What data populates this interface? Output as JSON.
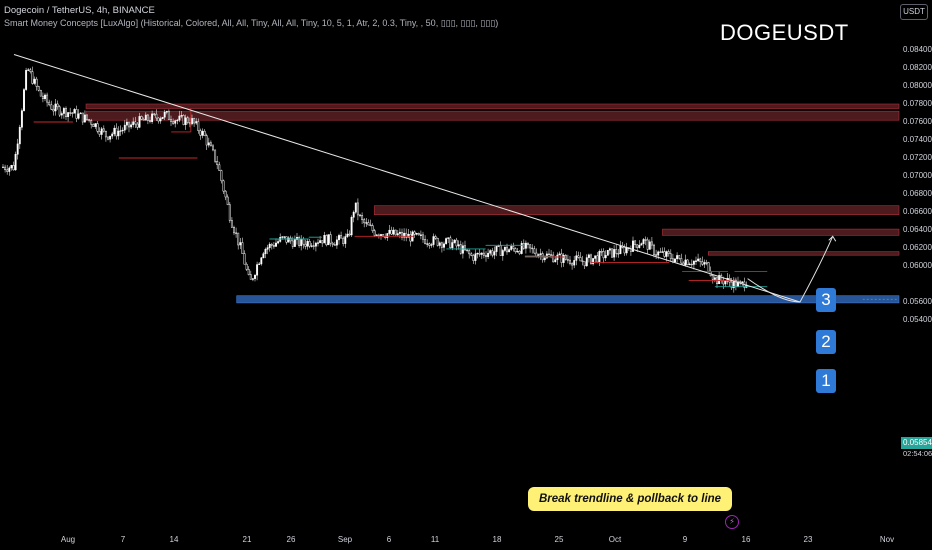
{
  "header": {
    "line1": "Dogecoin / TetherUS, 4h, BINANCE",
    "line2": "Smart Money Concepts [LuxAlgo] (Historical, Colored, All, All, Tiny, All, All, Tiny, 10, 5, 1, Atr, 2, 0.3, Tiny, , 50, ▯▯▯, ▯▯▯, ▯▯▯)"
  },
  "symbol_title": "DOGEUSDT",
  "currency": "USDT",
  "current_price": "0.05854",
  "countdown": "02:54:06",
  "icon_flash": "lightning-icon",
  "colors": {
    "background": "#000000",
    "supply_zone": "#5a1e22",
    "demand_zone": "#2a5aa0",
    "price_label_bg": "#26a69a",
    "badge": "#2f7ad6",
    "callout": "#fff176"
  },
  "badges": [
    "1",
    "2",
    "3"
  ],
  "callout_text": "Break trendline & pollback to line",
  "chart_data": {
    "type": "candlestick",
    "title": "DOGEUSDT",
    "ylim": [
      0.0535,
      0.085
    ],
    "y_ticks": [
      "0.08400",
      "0.08200",
      "0.08000",
      "0.07800",
      "0.07600",
      "0.07400",
      "0.07200",
      "0.07000",
      "0.06800",
      "0.06600",
      "0.06400",
      "0.06200",
      "0.06000",
      "0.05600",
      "0.05400"
    ],
    "x_ticks": [
      "Aug",
      "7",
      "14",
      "21",
      "26",
      "Sep",
      "6",
      "11",
      "18",
      "25",
      "Oct",
      "9",
      "16",
      "23",
      "Nov"
    ],
    "price_path": [
      [
        0,
        0.071
      ],
      [
        2,
        0.082
      ],
      [
        4,
        0.079
      ],
      [
        6,
        0.0775
      ],
      [
        9,
        0.077
      ],
      [
        12,
        0.076
      ],
      [
        14,
        0.0745
      ],
      [
        16,
        0.075
      ],
      [
        19,
        0.076
      ],
      [
        23,
        0.0768
      ],
      [
        25,
        0.0762
      ],
      [
        27,
        0.0762
      ],
      [
        29,
        0.0745
      ],
      [
        31,
        0.0715
      ],
      [
        33,
        0.0655
      ],
      [
        35,
        0.061
      ],
      [
        36,
        0.058
      ],
      [
        38,
        0.0618
      ],
      [
        41,
        0.063
      ],
      [
        44,
        0.0625
      ],
      [
        47,
        0.063
      ],
      [
        49,
        0.0628
      ],
      [
        51,
        0.063
      ],
      [
        52,
        0.0668
      ],
      [
        53,
        0.065
      ],
      [
        55,
        0.0638
      ],
      [
        58,
        0.0635
      ],
      [
        61,
        0.0632
      ],
      [
        64,
        0.0628
      ],
      [
        67,
        0.0625
      ],
      [
        70,
        0.061
      ],
      [
        72,
        0.0615
      ],
      [
        75,
        0.0618
      ],
      [
        78,
        0.062
      ],
      [
        81,
        0.0612
      ],
      [
        84,
        0.0608
      ],
      [
        87,
        0.0605
      ],
      [
        90,
        0.0612
      ],
      [
        93,
        0.0618
      ],
      [
        96,
        0.0628
      ],
      [
        98,
        0.0615
      ],
      [
        101,
        0.0608
      ],
      [
        104,
        0.0605
      ],
      [
        106,
        0.06
      ],
      [
        107,
        0.0585
      ],
      [
        109,
        0.0583
      ],
      [
        111,
        0.0578
      ],
      [
        112,
        0.0586
      ]
    ],
    "trendline": [
      [
        0,
        0.0835
      ],
      [
        120,
        0.056
      ]
    ],
    "zones": [
      {
        "kind": "supply",
        "top": 0.078,
        "bottom": 0.0775,
        "from": 11,
        "to": 150
      },
      {
        "kind": "supply",
        "top": 0.0772,
        "bottom": 0.0762,
        "from": 11,
        "to": 150
      },
      {
        "kind": "supply",
        "top": 0.0667,
        "bottom": 0.0657,
        "from": 55,
        "to": 150
      },
      {
        "kind": "supply",
        "top": 0.0641,
        "bottom": 0.0634,
        "from": 99,
        "to": 150
      },
      {
        "kind": "supply",
        "top": 0.0616,
        "bottom": 0.0612,
        "from": 106,
        "to": 150
      },
      {
        "kind": "demand",
        "top": 0.0567,
        "bottom": 0.0559,
        "from": 34,
        "to": 150
      }
    ],
    "projection": [
      [
        112,
        0.0586
      ],
      [
        117,
        0.0563
      ],
      [
        120,
        0.056
      ],
      [
        123,
        0.06
      ],
      [
        125,
        0.0633
      ]
    ]
  }
}
